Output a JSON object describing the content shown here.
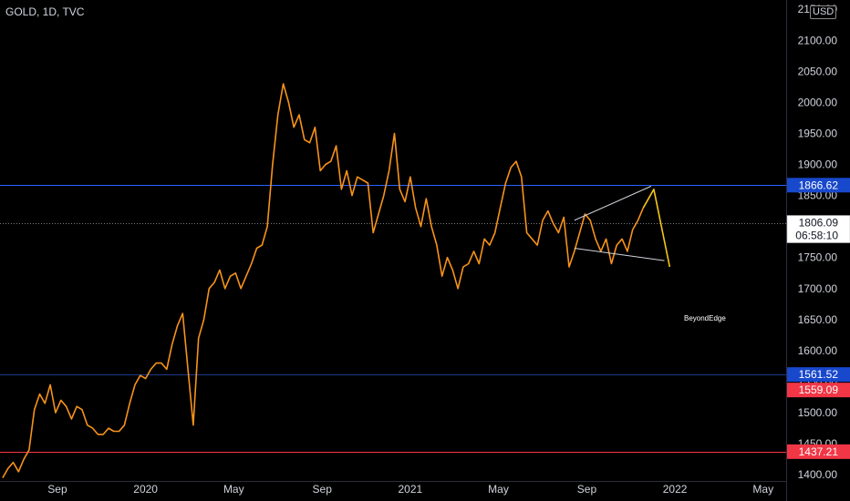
{
  "header": {
    "symbol": "GOLD, 1D, TVC",
    "currency": "USD"
  },
  "watermark": "BeyondEdge",
  "chart_data": {
    "type": "line",
    "symbol": "GOLD",
    "interval": "1D",
    "source": "TVC",
    "currency": "USD",
    "x_ticks": [
      "Sep",
      "2020",
      "May",
      "Sep",
      "2021",
      "May",
      "Sep",
      "2022",
      "May"
    ],
    "x_tick_pos": [
      2019.667,
      2020.0,
      2020.333,
      2020.667,
      2021.0,
      2021.333,
      2021.667,
      2022.0,
      2022.333
    ],
    "y_ticks": [
      "1400.00",
      "1450.00",
      "1500.00",
      "1550.00",
      "1600.00",
      "1650.00",
      "1700.00",
      "1750.00",
      "1800.00",
      "1850.00",
      "1900.00",
      "1950.00",
      "2000.00",
      "2050.00",
      "2100.00",
      "2150.00"
    ],
    "x_range": [
      2019.45,
      2022.42
    ],
    "y_range": [
      1390,
      2165
    ],
    "series": [
      {
        "color": "#f7931a",
        "x": [
          2019.46,
          2019.48,
          2019.5,
          2019.52,
          2019.54,
          2019.56,
          2019.58,
          2019.6,
          2019.62,
          2019.64,
          2019.66,
          2019.68,
          2019.7,
          2019.72,
          2019.74,
          2019.76,
          2019.78,
          2019.8,
          2019.82,
          2019.84,
          2019.86,
          2019.88,
          2019.9,
          2019.92,
          2019.94,
          2019.96,
          2019.98,
          2020.0,
          2020.02,
          2020.04,
          2020.06,
          2020.08,
          2020.1,
          2020.12,
          2020.14,
          2020.16,
          2020.18,
          2020.2,
          2020.22,
          2020.24,
          2020.26,
          2020.28,
          2020.3,
          2020.32,
          2020.34,
          2020.36,
          2020.38,
          2020.4,
          2020.42,
          2020.44,
          2020.46,
          2020.48,
          2020.5,
          2020.52,
          2020.54,
          2020.56,
          2020.58,
          2020.6,
          2020.62,
          2020.64,
          2020.66,
          2020.68,
          2020.7,
          2020.72,
          2020.74,
          2020.76,
          2020.78,
          2020.8,
          2020.82,
          2020.84,
          2020.86,
          2020.88,
          2020.9,
          2020.92,
          2020.94,
          2020.96,
          2020.98,
          2021.0,
          2021.02,
          2021.04,
          2021.06,
          2021.08,
          2021.1,
          2021.12,
          2021.14,
          2021.16,
          2021.18,
          2021.2,
          2021.22,
          2021.24,
          2021.26,
          2021.28,
          2021.3,
          2021.32,
          2021.34,
          2021.36,
          2021.38,
          2021.4,
          2021.42,
          2021.44,
          2021.46,
          2021.48,
          2021.5,
          2021.52,
          2021.54,
          2021.56,
          2021.58,
          2021.6,
          2021.62,
          2021.64,
          2021.66,
          2021.68,
          2021.7,
          2021.72,
          2021.74,
          2021.76,
          2021.78,
          2021.8,
          2021.82,
          2021.84,
          2021.86,
          2021.88
        ],
        "y": [
          1395,
          1410,
          1420,
          1405,
          1425,
          1440,
          1505,
          1530,
          1515,
          1545,
          1500,
          1520,
          1510,
          1490,
          1510,
          1505,
          1480,
          1475,
          1465,
          1465,
          1475,
          1470,
          1470,
          1480,
          1515,
          1545,
          1560,
          1555,
          1570,
          1580,
          1580,
          1570,
          1610,
          1640,
          1660,
          1570,
          1480,
          1620,
          1650,
          1700,
          1710,
          1730,
          1700,
          1720,
          1725,
          1700,
          1720,
          1740,
          1765,
          1770,
          1800,
          1900,
          1980,
          2030,
          2000,
          1960,
          1980,
          1940,
          1935,
          1960,
          1890,
          1900,
          1905,
          1930,
          1860,
          1890,
          1850,
          1880,
          1875,
          1870,
          1790,
          1820,
          1850,
          1890,
          1950,
          1860,
          1840,
          1880,
          1830,
          1800,
          1845,
          1800,
          1770,
          1720,
          1750,
          1730,
          1700,
          1735,
          1740,
          1760,
          1740,
          1780,
          1770,
          1790,
          1830,
          1870,
          1895,
          1905,
          1880,
          1790,
          1780,
          1770,
          1810,
          1825,
          1805,
          1790,
          1815,
          1735,
          1760,
          1790,
          1820,
          1810,
          1780,
          1760,
          1780,
          1740,
          1770,
          1780,
          1760,
          1795,
          1810,
          1830
        ]
      },
      {
        "color": "#f5c518",
        "x": [
          2021.88,
          2021.92,
          2021.98
        ],
        "y": [
          1830,
          1860,
          1735
        ]
      }
    ],
    "trendlines": [
      {
        "color": "#d1d4dc",
        "x": [
          2021.62,
          2021.91
        ],
        "y": [
          1810,
          1865
        ]
      },
      {
        "color": "#d1d4dc",
        "x": [
          2021.62,
          2021.96
        ],
        "y": [
          1765,
          1745
        ]
      }
    ],
    "horizontal_lines": [
      {
        "color": "#2962ff",
        "value": 1866.62,
        "label": "1866.62",
        "badge_color": "#1848cc"
      },
      {
        "color": "#1e3a8a",
        "value": 1561.52,
        "label": "1561.52",
        "badge_color": "#1848cc"
      },
      {
        "color": "#f23645",
        "value": 1559.09,
        "label": "1559.09",
        "badge_color": "#f23645",
        "draw_line": false
      },
      {
        "color": "#f23645",
        "value": 1437.21,
        "label": "1437.21",
        "badge_color": "#f23645"
      }
    ],
    "current_price": {
      "value": 1806.09,
      "label": "1806.09",
      "countdown": "06:58:10"
    }
  }
}
